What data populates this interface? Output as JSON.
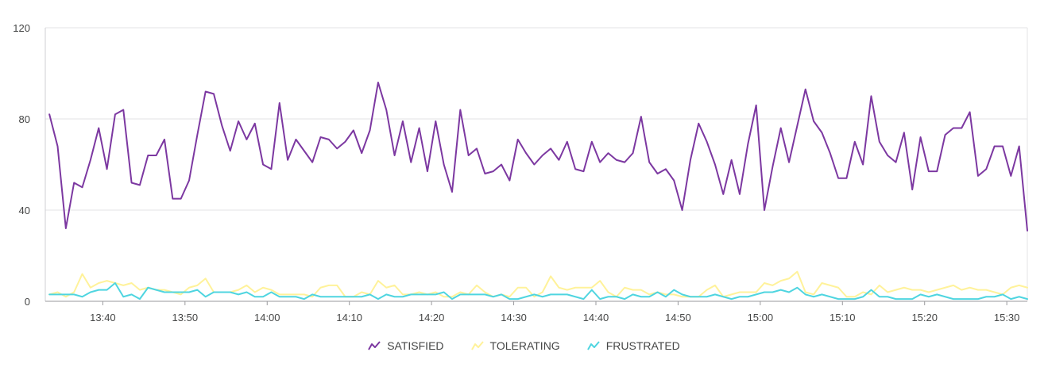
{
  "chart_data": {
    "type": "line",
    "title": "",
    "xlabel": "",
    "ylabel": "",
    "ylim": [
      0,
      120
    ],
    "yticks": [
      0,
      40,
      80,
      120
    ],
    "ytick_labels": [
      "0",
      "40",
      "80",
      "120"
    ],
    "xlim_minutes": [
      813.0,
      932.5
    ],
    "xticks_minutes": [
      820,
      830,
      840,
      850,
      860,
      870,
      880,
      890,
      900,
      910,
      920,
      930
    ],
    "xtick_labels": [
      "13:40",
      "13:50",
      "14:00",
      "14:10",
      "14:20",
      "14:30",
      "14:40",
      "14:50",
      "15:00",
      "15:10",
      "15:20",
      "15:30"
    ],
    "x_start_minutes": 813.5,
    "x_step_minutes": 1.0,
    "grid": true,
    "legend_position": "bottom-center",
    "series": [
      {
        "name": "SATISFIED",
        "color": "#7c38a1",
        "values": [
          82,
          68,
          32,
          52,
          50,
          62,
          76,
          58,
          82,
          84,
          52,
          51,
          64,
          64,
          71,
          45,
          45,
          53,
          73,
          92,
          91,
          77,
          66,
          79,
          71,
          78,
          60,
          58,
          87,
          62,
          71,
          66,
          61,
          72,
          71,
          67,
          70,
          75,
          65,
          75,
          96,
          84,
          64,
          79,
          61,
          76,
          57,
          79,
          60,
          48,
          84,
          64,
          67,
          56,
          57,
          60,
          53,
          71,
          65,
          60,
          64,
          67,
          62,
          70,
          58,
          57,
          70,
          61,
          65,
          62,
          61,
          65,
          81,
          61,
          56,
          58,
          53,
          40,
          62,
          78,
          70,
          60,
          47,
          62,
          47,
          69,
          86,
          40,
          59,
          76,
          61,
          77,
          93,
          79,
          74,
          65,
          54,
          54,
          70,
          60,
          90,
          70,
          64,
          61,
          74,
          49,
          72,
          57,
          57,
          73,
          76,
          76,
          83,
          55,
          58,
          68,
          68,
          55,
          68,
          31
        ]
      },
      {
        "name": "TOLERATING",
        "color": "#fff29a",
        "values": [
          3,
          4,
          2,
          4,
          12,
          6,
          8,
          9,
          8,
          7,
          8,
          5,
          6,
          5,
          5,
          4,
          3,
          6,
          7,
          10,
          4,
          4,
          4,
          5,
          7,
          4,
          6,
          5,
          3,
          3,
          3,
          3,
          2,
          6,
          7,
          7,
          2,
          2,
          4,
          3,
          9,
          6,
          7,
          3,
          3,
          4,
          3,
          4,
          2,
          2,
          4,
          3,
          7,
          4,
          2,
          3,
          2,
          6,
          6,
          2,
          4,
          11,
          6,
          5,
          6,
          6,
          6,
          9,
          4,
          2,
          6,
          5,
          5,
          3,
          4,
          3,
          3,
          2,
          2,
          2,
          5,
          7,
          2,
          3,
          4,
          4,
          4,
          8,
          7,
          9,
          10,
          13,
          4,
          3,
          8,
          7,
          6,
          2,
          2,
          4,
          3,
          7,
          4,
          5,
          6,
          5,
          5,
          4,
          5,
          6,
          7,
          5,
          6,
          5,
          5,
          4,
          3,
          6,
          7,
          6
        ]
      },
      {
        "name": "FRUSTRATED",
        "color": "#4fd5e0",
        "values": [
          3,
          3,
          3,
          3,
          2,
          4,
          5,
          5,
          8,
          2,
          3,
          1,
          6,
          5,
          4,
          4,
          4,
          4,
          5,
          2,
          4,
          4,
          4,
          3,
          4,
          2,
          2,
          4,
          2,
          2,
          2,
          1,
          3,
          2,
          2,
          2,
          2,
          2,
          2,
          3,
          1,
          3,
          2,
          2,
          3,
          3,
          3,
          3,
          4,
          1,
          3,
          3,
          3,
          3,
          2,
          3,
          1,
          1,
          2,
          3,
          2,
          3,
          3,
          3,
          2,
          1,
          5,
          1,
          2,
          2,
          1,
          3,
          2,
          2,
          4,
          2,
          5,
          3,
          2,
          2,
          2,
          3,
          2,
          1,
          2,
          2,
          3,
          4,
          4,
          5,
          4,
          6,
          3,
          2,
          3,
          2,
          1,
          1,
          1,
          2,
          5,
          2,
          2,
          1,
          1,
          1,
          3,
          2,
          3,
          2,
          1,
          1,
          1,
          1,
          2,
          2,
          3,
          1,
          2,
          1
        ]
      }
    ]
  },
  "legend": {
    "items": [
      {
        "label": "SATISFIED",
        "color": "#7c38a1",
        "icon": "line-trend-icon"
      },
      {
        "label": "TOLERATING",
        "color": "#fff29a",
        "icon": "line-trend-icon"
      },
      {
        "label": "FRUSTRATED",
        "color": "#4fd5e0",
        "icon": "line-trend-icon"
      }
    ]
  }
}
